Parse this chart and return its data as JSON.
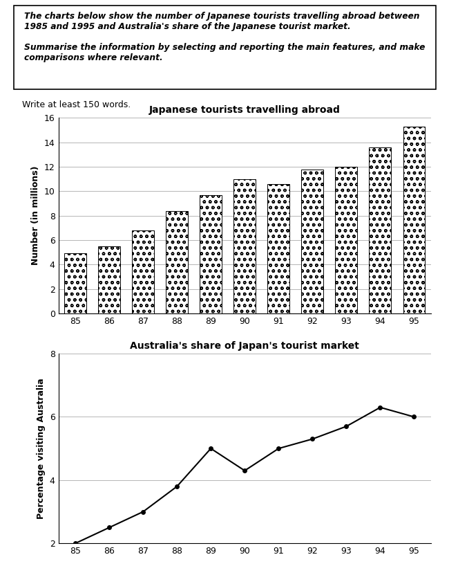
{
  "years": [
    85,
    86,
    87,
    88,
    89,
    90,
    91,
    92,
    93,
    94,
    95
  ],
  "bar_values": [
    4.9,
    5.5,
    6.8,
    8.4,
    9.7,
    11.0,
    10.6,
    11.8,
    12.0,
    13.6,
    15.3
  ],
  "line_values": [
    2.0,
    2.5,
    3.0,
    3.8,
    5.0,
    4.3,
    5.0,
    5.3,
    5.7,
    6.3,
    6.0
  ],
  "bar_title": "Japanese tourists travelling abroad",
  "line_title": "Australia's share of Japan's tourist market",
  "bar_ylabel": "Number (in millions)",
  "line_ylabel": "Percentage visiting Australia",
  "bar_ylim": [
    0,
    16
  ],
  "bar_yticks": [
    0,
    2,
    4,
    6,
    8,
    10,
    12,
    14,
    16
  ],
  "line_ylim": [
    2,
    8
  ],
  "line_yticks": [
    2,
    4,
    6,
    8
  ],
  "write_text": "Write at least 150 words.",
  "line_color": "#000000",
  "hatch_pattern": "oo",
  "prompt_lines": [
    "The charts below show the number of Japanese tourists travelling abroad between",
    "1985 and 1995 and Australia's share of the Japanese tourist market.",
    "",
    "Summarise the information by selecting and reporting the main features, and make",
    "comparisons where relevant."
  ]
}
